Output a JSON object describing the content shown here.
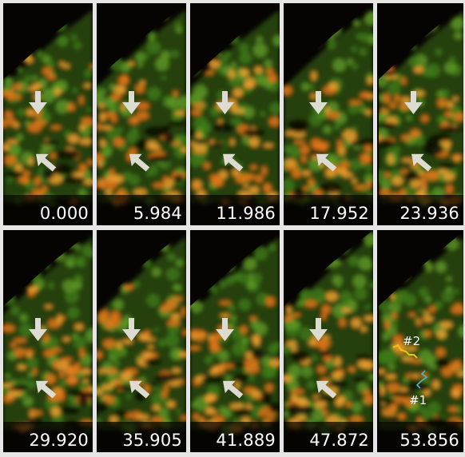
{
  "panels": [
    {
      "time": "0.000",
      "arrows": true
    },
    {
      "time": "5.984",
      "arrows": true
    },
    {
      "time": "11.986",
      "arrows": true
    },
    {
      "time": "17.952",
      "arrows": true
    },
    {
      "time": "23.936",
      "arrows": true
    },
    {
      "time": "29.920",
      "arrows": true
    },
    {
      "time": "35.905",
      "arrows": true
    },
    {
      "time": "41.889",
      "arrows": true
    },
    {
      "time": "47.872",
      "arrows": true
    },
    {
      "time": "53.856",
      "arrows": false
    }
  ],
  "tracks": [
    {
      "label": "#2",
      "color": "#f2c21a"
    },
    {
      "label": "#1",
      "color": "#4fb7c4"
    }
  ],
  "colors": {
    "background": "#060402",
    "separator": "#e6e6e6",
    "arrow": "#dcdcd2",
    "green_channel": "#4f8f1f",
    "red_channel": "#e07018"
  }
}
